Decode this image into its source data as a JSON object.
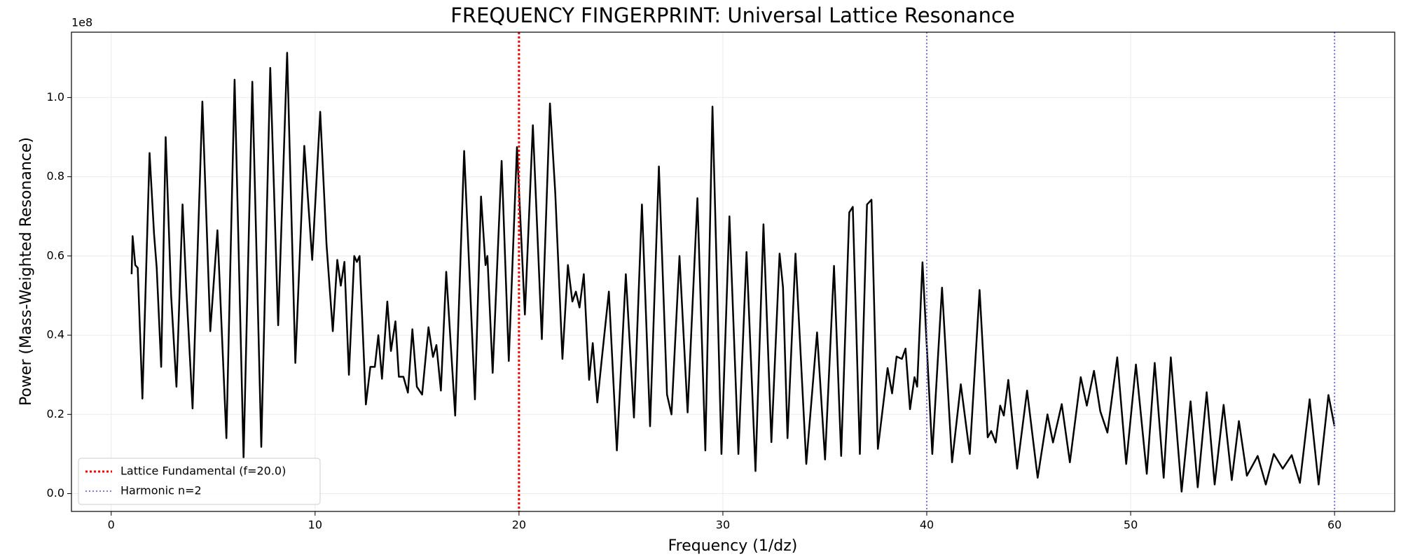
{
  "chart_data": {
    "type": "line",
    "title": "FREQUENCY FINGERPRINT: Universal Lattice Resonance",
    "xlabel": "Frequency (1/dz)",
    "ylabel": "Power (Mass-Weighted Resonance)",
    "offset_text": "1e8",
    "xlim": [
      -1.95,
      62.95
    ],
    "ylim": [
      -0.045,
      1.165
    ],
    "xticks": [
      0,
      10,
      20,
      30,
      40,
      50,
      60
    ],
    "yticks": [
      {
        "value": 0,
        "label": "0.0"
      },
      0.2,
      0.4,
      0.6,
      0.8,
      {
        "value": 1,
        "label": "1.0"
      }
    ],
    "grid": true,
    "legend": "lower left",
    "series": [
      {
        "color": "#000000",
        "x": [
          1.0,
          1.05,
          1.18,
          1.3,
          1.53,
          1.88,
          2.1,
          2.23,
          2.45,
          2.67,
          2.94,
          3.2,
          3.5,
          3.68,
          3.99,
          4.47,
          4.86,
          5.21,
          5.65,
          6.05,
          6.49,
          6.92,
          7.36,
          7.8,
          8.19,
          8.63,
          9.03,
          9.47,
          9.86,
          10.25,
          10.56,
          10.87,
          11.09,
          11.26,
          11.44,
          11.66,
          11.92,
          12.05,
          12.18,
          12.49,
          12.71,
          12.93,
          13.1,
          13.28,
          13.54,
          13.72,
          13.94,
          14.11,
          14.33,
          14.55,
          14.77,
          14.99,
          15.25,
          15.56,
          15.78,
          15.95,
          16.17,
          16.43,
          16.87,
          17.31,
          17.84,
          18.14,
          18.36,
          18.45,
          18.71,
          19.15,
          19.5,
          19.9,
          20.29,
          20.68,
          21.12,
          21.52,
          21.78,
          22.13,
          22.4,
          22.62,
          22.79,
          22.97,
          23.18,
          23.44,
          23.62,
          23.84,
          24.06,
          24.41,
          24.8,
          25.24,
          25.64,
          26.03,
          26.43,
          26.86,
          27.26,
          27.48,
          27.87,
          28.27,
          28.75,
          29.14,
          29.49,
          29.93,
          30.32,
          30.76,
          31.16,
          31.6,
          31.99,
          32.38,
          32.78,
          32.95,
          33.17,
          33.56,
          34.09,
          34.62,
          35.01,
          35.45,
          35.8,
          36.2,
          36.37,
          36.72,
          37.07,
          37.29,
          37.6,
          38.08,
          38.3,
          38.52,
          38.78,
          38.96,
          39.18,
          39.4,
          39.53,
          39.79,
          40.27,
          40.75,
          41.24,
          41.67,
          42.11,
          42.59,
          42.99,
          43.16,
          43.38,
          43.6,
          43.78,
          44.0,
          44.43,
          44.92,
          45.44,
          45.92,
          46.19,
          46.62,
          47.02,
          47.55,
          47.85,
          48.2,
          48.51,
          48.86,
          49.34,
          49.78,
          50.26,
          50.79,
          51.18,
          51.62,
          51.97,
          52.5,
          52.94,
          53.29,
          53.73,
          54.12,
          54.56,
          54.96,
          55.31,
          55.7,
          56.23,
          56.63,
          57.02,
          57.46,
          57.9,
          58.3,
          58.78,
          59.22,
          59.7,
          60.0
        ],
        "values": [
          0.554,
          0.65,
          0.577,
          0.57,
          0.24,
          0.86,
          0.656,
          0.57,
          0.32,
          0.9,
          0.5,
          0.27,
          0.73,
          0.52,
          0.215,
          0.99,
          0.41,
          0.665,
          0.14,
          1.045,
          0.09,
          1.04,
          0.118,
          1.075,
          0.425,
          1.113,
          0.33,
          0.878,
          0.59,
          0.964,
          0.63,
          0.41,
          0.59,
          0.525,
          0.585,
          0.3,
          0.6,
          0.585,
          0.6,
          0.225,
          0.32,
          0.32,
          0.4,
          0.29,
          0.485,
          0.36,
          0.435,
          0.295,
          0.295,
          0.255,
          0.415,
          0.27,
          0.25,
          0.42,
          0.345,
          0.375,
          0.26,
          0.56,
          0.197,
          0.865,
          0.238,
          0.75,
          0.577,
          0.6,
          0.305,
          0.84,
          0.335,
          0.875,
          0.452,
          0.93,
          0.39,
          0.985,
          0.758,
          0.34,
          0.577,
          0.485,
          0.51,
          0.47,
          0.554,
          0.287,
          0.38,
          0.23,
          0.34,
          0.51,
          0.109,
          0.554,
          0.192,
          0.73,
          0.17,
          0.826,
          0.25,
          0.2,
          0.6,
          0.205,
          0.746,
          0.109,
          0.977,
          0.1,
          0.7,
          0.1,
          0.61,
          0.057,
          0.68,
          0.13,
          0.606,
          0.52,
          0.14,
          0.606,
          0.075,
          0.407,
          0.086,
          0.575,
          0.095,
          0.71,
          0.724,
          0.1,
          0.73,
          0.742,
          0.113,
          0.317,
          0.253,
          0.346,
          0.34,
          0.366,
          0.213,
          0.294,
          0.27,
          0.584,
          0.1,
          0.52,
          0.079,
          0.276,
          0.1,
          0.514,
          0.142,
          0.158,
          0.129,
          0.222,
          0.197,
          0.287,
          0.063,
          0.26,
          0.04,
          0.2,
          0.129,
          0.226,
          0.079,
          0.294,
          0.222,
          0.31,
          0.208,
          0.154,
          0.344,
          0.075,
          0.326,
          0.05,
          0.33,
          0.04,
          0.344,
          0.005,
          0.233,
          0.016,
          0.256,
          0.023,
          0.224,
          0.034,
          0.183,
          0.045,
          0.095,
          0.023,
          0.1,
          0.063,
          0.097,
          0.027,
          0.238,
          0.023,
          0.249,
          0.17
        ]
      }
    ],
    "vlines": [
      {
        "x": 20,
        "label": "Lattice Fundamental (f=20.0)",
        "color": "#ff0000",
        "style": "dotted",
        "width": 3
      },
      {
        "x": 40,
        "label": "Harmonic n=2",
        "color": "#7b7bd8",
        "style": "dotted",
        "width": 2
      },
      {
        "x": 60,
        "color": "#7b7bd8",
        "style": "dotted",
        "width": 2
      }
    ]
  }
}
